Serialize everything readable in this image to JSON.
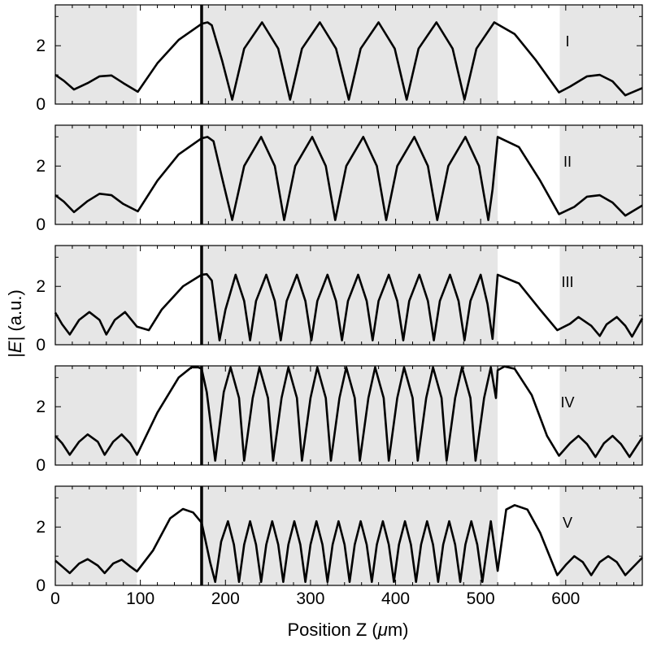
{
  "chart_data": {
    "type": "line",
    "xlabel": {
      "pre": "Position Z (",
      "mu": "μ",
      "post": "m)"
    },
    "ylabel": {
      "pre": "|",
      "var": "E",
      "post": "| (a.u.)"
    },
    "xlim": [
      0,
      690
    ],
    "ylim": [
      0,
      3.4
    ],
    "xticks": [
      0,
      100,
      200,
      300,
      400,
      500,
      600
    ],
    "yticks": [
      0,
      2
    ],
    "grid": false,
    "legend": "none",
    "shaded_regions": [
      [
        0,
        96
      ],
      [
        172,
        520
      ],
      [
        593,
        690
      ]
    ],
    "interface_line_x": 172,
    "colors": {
      "line": "#000000",
      "shade": "#e6e6e6",
      "axis": "#000000"
    },
    "panels": [
      {
        "label": "I",
        "series": [
          [
            0,
            1.0
          ],
          [
            10,
            0.8
          ],
          [
            22,
            0.5
          ],
          [
            38,
            0.72
          ],
          [
            52,
            0.95
          ],
          [
            66,
            0.98
          ],
          [
            80,
            0.72
          ],
          [
            97,
            0.42
          ],
          [
            120,
            1.4
          ],
          [
            145,
            2.2
          ],
          [
            172,
            2.75
          ],
          [
            179,
            2.8
          ],
          [
            184,
            2.7
          ],
          [
            196,
            1.5
          ],
          [
            208,
            0.15
          ],
          [
            222,
            1.9
          ],
          [
            243,
            2.8
          ],
          [
            262,
            1.9
          ],
          [
            276,
            0.15
          ],
          [
            290,
            1.9
          ],
          [
            311,
            2.8
          ],
          [
            330,
            1.9
          ],
          [
            345,
            0.15
          ],
          [
            359,
            1.9
          ],
          [
            380,
            2.8
          ],
          [
            399,
            1.9
          ],
          [
            413,
            0.15
          ],
          [
            427,
            1.9
          ],
          [
            448,
            2.8
          ],
          [
            467,
            1.9
          ],
          [
            481,
            0.15
          ],
          [
            495,
            1.9
          ],
          [
            516,
            2.8
          ],
          [
            540,
            2.4
          ],
          [
            565,
            1.5
          ],
          [
            592,
            0.4
          ],
          [
            605,
            0.6
          ],
          [
            625,
            0.95
          ],
          [
            640,
            1.0
          ],
          [
            655,
            0.78
          ],
          [
            670,
            0.3
          ],
          [
            690,
            0.55
          ]
        ]
      },
      {
        "label": "II",
        "series": [
          [
            0,
            1.0
          ],
          [
            10,
            0.78
          ],
          [
            22,
            0.42
          ],
          [
            38,
            0.8
          ],
          [
            52,
            1.05
          ],
          [
            66,
            1.0
          ],
          [
            80,
            0.7
          ],
          [
            97,
            0.45
          ],
          [
            120,
            1.5
          ],
          [
            145,
            2.4
          ],
          [
            172,
            2.95
          ],
          [
            179,
            3.0
          ],
          [
            186,
            2.85
          ],
          [
            196,
            1.6
          ],
          [
            208,
            0.15
          ],
          [
            222,
            2.0
          ],
          [
            242,
            3.0
          ],
          [
            258,
            2.0
          ],
          [
            269,
            0.15
          ],
          [
            282,
            2.0
          ],
          [
            302,
            3.0
          ],
          [
            318,
            2.0
          ],
          [
            329,
            0.15
          ],
          [
            342,
            2.0
          ],
          [
            362,
            3.0
          ],
          [
            378,
            2.0
          ],
          [
            389,
            0.15
          ],
          [
            402,
            2.0
          ],
          [
            422,
            3.0
          ],
          [
            438,
            2.0
          ],
          [
            449,
            0.15
          ],
          [
            462,
            2.0
          ],
          [
            482,
            3.0
          ],
          [
            498,
            2.0
          ],
          [
            509,
            0.15
          ],
          [
            514,
            1.2
          ],
          [
            520,
            3.0
          ],
          [
            545,
            2.65
          ],
          [
            570,
            1.5
          ],
          [
            592,
            0.35
          ],
          [
            610,
            0.6
          ],
          [
            625,
            0.95
          ],
          [
            640,
            1.0
          ],
          [
            655,
            0.75
          ],
          [
            670,
            0.3
          ],
          [
            690,
            0.65
          ]
        ]
      },
      {
        "label": "III",
        "series": [
          [
            0,
            1.1
          ],
          [
            8,
            0.7
          ],
          [
            17,
            0.35
          ],
          [
            28,
            0.85
          ],
          [
            40,
            1.12
          ],
          [
            52,
            0.85
          ],
          [
            60,
            0.35
          ],
          [
            70,
            0.85
          ],
          [
            82,
            1.12
          ],
          [
            96,
            0.62
          ],
          [
            110,
            0.5
          ],
          [
            125,
            1.2
          ],
          [
            150,
            2.0
          ],
          [
            172,
            2.4
          ],
          [
            178,
            2.42
          ],
          [
            184,
            2.2
          ],
          [
            193,
            0.15
          ],
          [
            200,
            1.2
          ],
          [
            212,
            2.4
          ],
          [
            222,
            1.5
          ],
          [
            229,
            0.15
          ],
          [
            236,
            1.5
          ],
          [
            248,
            2.4
          ],
          [
            258,
            1.5
          ],
          [
            265,
            0.15
          ],
          [
            272,
            1.5
          ],
          [
            284,
            2.4
          ],
          [
            294,
            1.5
          ],
          [
            301,
            0.15
          ],
          [
            308,
            1.5
          ],
          [
            320,
            2.4
          ],
          [
            330,
            1.5
          ],
          [
            337,
            0.15
          ],
          [
            344,
            1.5
          ],
          [
            356,
            2.4
          ],
          [
            366,
            1.5
          ],
          [
            373,
            0.15
          ],
          [
            380,
            1.5
          ],
          [
            392,
            2.4
          ],
          [
            402,
            1.5
          ],
          [
            409,
            0.15
          ],
          [
            416,
            1.5
          ],
          [
            428,
            2.4
          ],
          [
            438,
            1.5
          ],
          [
            445,
            0.15
          ],
          [
            452,
            1.5
          ],
          [
            464,
            2.4
          ],
          [
            474,
            1.5
          ],
          [
            481,
            0.15
          ],
          [
            488,
            1.5
          ],
          [
            500,
            2.4
          ],
          [
            508,
            1.4
          ],
          [
            514,
            0.2
          ],
          [
            520,
            2.4
          ],
          [
            545,
            2.1
          ],
          [
            570,
            1.2
          ],
          [
            590,
            0.5
          ],
          [
            605,
            0.72
          ],
          [
            615,
            0.95
          ],
          [
            630,
            0.65
          ],
          [
            640,
            0.3
          ],
          [
            648,
            0.7
          ],
          [
            660,
            0.95
          ],
          [
            670,
            0.65
          ],
          [
            678,
            0.28
          ],
          [
            690,
            0.9
          ]
        ]
      },
      {
        "label": "IV",
        "series": [
          [
            0,
            1.0
          ],
          [
            8,
            0.75
          ],
          [
            17,
            0.35
          ],
          [
            28,
            0.8
          ],
          [
            38,
            1.05
          ],
          [
            50,
            0.8
          ],
          [
            58,
            0.35
          ],
          [
            68,
            0.8
          ],
          [
            78,
            1.05
          ],
          [
            88,
            0.75
          ],
          [
            96,
            0.35
          ],
          [
            120,
            1.8
          ],
          [
            145,
            3.0
          ],
          [
            160,
            3.35
          ],
          [
            168,
            3.35
          ],
          [
            172,
            3.3
          ],
          [
            178,
            2.5
          ],
          [
            188,
            0.15
          ],
          [
            198,
            2.5
          ],
          [
            206,
            3.35
          ],
          [
            216,
            2.3
          ],
          [
            222,
            0.15
          ],
          [
            232,
            2.3
          ],
          [
            240,
            3.35
          ],
          [
            250,
            2.3
          ],
          [
            256,
            0.15
          ],
          [
            266,
            2.3
          ],
          [
            274,
            3.35
          ],
          [
            284,
            2.3
          ],
          [
            290,
            0.15
          ],
          [
            300,
            2.3
          ],
          [
            308,
            3.35
          ],
          [
            318,
            2.3
          ],
          [
            324,
            0.15
          ],
          [
            334,
            2.3
          ],
          [
            342,
            3.35
          ],
          [
            352,
            2.3
          ],
          [
            358,
            0.15
          ],
          [
            368,
            2.3
          ],
          [
            376,
            3.35
          ],
          [
            386,
            2.3
          ],
          [
            392,
            0.15
          ],
          [
            402,
            2.3
          ],
          [
            410,
            3.35
          ],
          [
            420,
            2.3
          ],
          [
            426,
            0.15
          ],
          [
            436,
            2.3
          ],
          [
            444,
            3.35
          ],
          [
            454,
            2.3
          ],
          [
            460,
            0.15
          ],
          [
            470,
            2.3
          ],
          [
            478,
            3.35
          ],
          [
            488,
            2.3
          ],
          [
            494,
            0.15
          ],
          [
            504,
            2.3
          ],
          [
            512,
            3.35
          ],
          [
            518,
            2.3
          ],
          [
            520,
            3.25
          ],
          [
            528,
            3.38
          ],
          [
            540,
            3.3
          ],
          [
            560,
            2.4
          ],
          [
            578,
            1.0
          ],
          [
            592,
            0.32
          ],
          [
            605,
            0.75
          ],
          [
            615,
            1.0
          ],
          [
            625,
            0.72
          ],
          [
            635,
            0.28
          ],
          [
            645,
            0.75
          ],
          [
            655,
            1.0
          ],
          [
            665,
            0.72
          ],
          [
            675,
            0.28
          ],
          [
            690,
            0.95
          ]
        ]
      },
      {
        "label": "V",
        "series": [
          [
            0,
            0.85
          ],
          [
            8,
            0.65
          ],
          [
            17,
            0.42
          ],
          [
            28,
            0.75
          ],
          [
            38,
            0.9
          ],
          [
            50,
            0.68
          ],
          [
            58,
            0.42
          ],
          [
            68,
            0.75
          ],
          [
            78,
            0.88
          ],
          [
            88,
            0.65
          ],
          [
            96,
            0.48
          ],
          [
            115,
            1.2
          ],
          [
            135,
            2.3
          ],
          [
            150,
            2.62
          ],
          [
            162,
            2.5
          ],
          [
            172,
            2.15
          ],
          [
            182,
            0.8
          ],
          [
            188,
            0.12
          ],
          [
            195,
            1.5
          ],
          [
            203,
            2.2
          ],
          [
            210,
            1.4
          ],
          [
            216,
            0.12
          ],
          [
            222,
            1.4
          ],
          [
            229,
            2.2
          ],
          [
            236,
            1.4
          ],
          [
            242,
            0.12
          ],
          [
            248,
            1.4
          ],
          [
            255,
            2.2
          ],
          [
            262,
            1.4
          ],
          [
            268,
            0.12
          ],
          [
            274,
            1.4
          ],
          [
            281,
            2.2
          ],
          [
            288,
            1.4
          ],
          [
            294,
            0.12
          ],
          [
            300,
            1.4
          ],
          [
            307,
            2.2
          ],
          [
            314,
            1.4
          ],
          [
            320,
            0.12
          ],
          [
            326,
            1.4
          ],
          [
            333,
            2.2
          ],
          [
            340,
            1.4
          ],
          [
            346,
            0.12
          ],
          [
            352,
            1.4
          ],
          [
            359,
            2.2
          ],
          [
            366,
            1.4
          ],
          [
            372,
            0.12
          ],
          [
            378,
            1.4
          ],
          [
            385,
            2.2
          ],
          [
            392,
            1.4
          ],
          [
            398,
            0.12
          ],
          [
            404,
            1.4
          ],
          [
            411,
            2.2
          ],
          [
            418,
            1.4
          ],
          [
            424,
            0.12
          ],
          [
            430,
            1.4
          ],
          [
            437,
            2.2
          ],
          [
            444,
            1.4
          ],
          [
            450,
            0.12
          ],
          [
            456,
            1.4
          ],
          [
            463,
            2.2
          ],
          [
            470,
            1.4
          ],
          [
            476,
            0.12
          ],
          [
            482,
            1.4
          ],
          [
            489,
            2.2
          ],
          [
            496,
            1.4
          ],
          [
            502,
            0.12
          ],
          [
            508,
            1.4
          ],
          [
            512,
            2.2
          ],
          [
            520,
            0.5
          ],
          [
            530,
            2.6
          ],
          [
            540,
            2.75
          ],
          [
            555,
            2.6
          ],
          [
            570,
            1.8
          ],
          [
            590,
            0.35
          ],
          [
            600,
            0.7
          ],
          [
            610,
            1.0
          ],
          [
            620,
            0.8
          ],
          [
            630,
            0.35
          ],
          [
            640,
            0.8
          ],
          [
            650,
            1.0
          ],
          [
            660,
            0.8
          ],
          [
            670,
            0.35
          ],
          [
            690,
            0.95
          ]
        ]
      }
    ]
  }
}
